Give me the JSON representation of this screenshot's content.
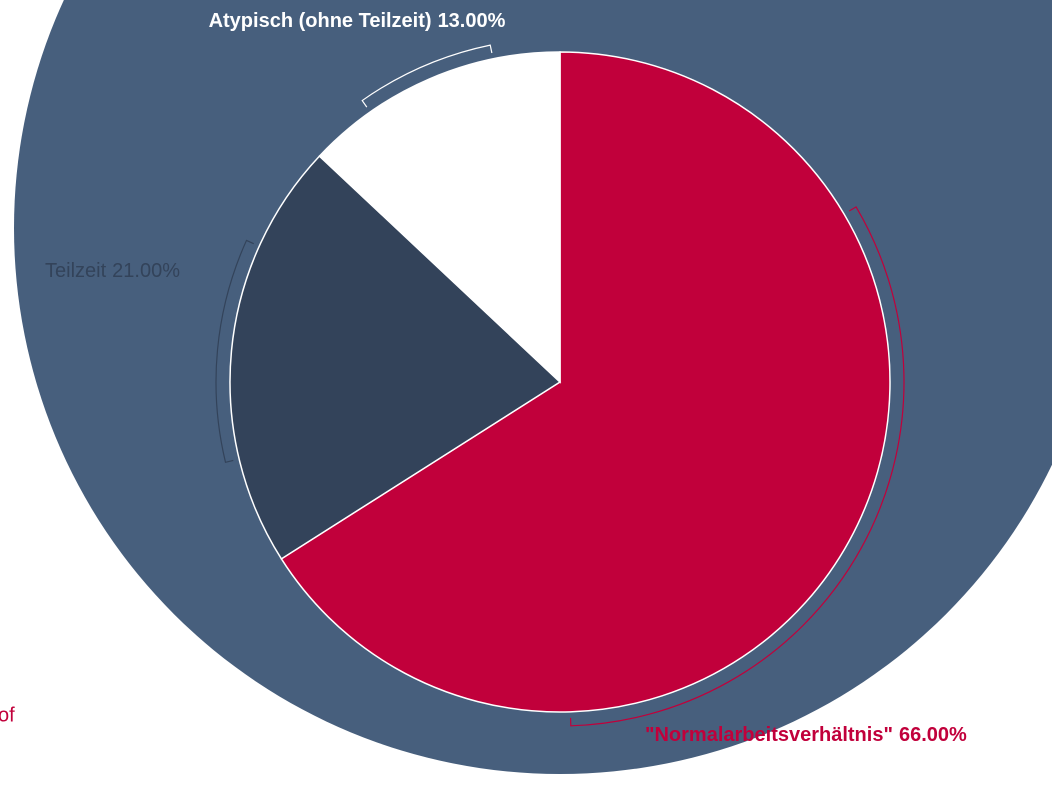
{
  "chart_data": {
    "type": "pie",
    "categories": [
      "\"Normalarbeitsverhältnis\"",
      "Teilzeit",
      "Atypisch (ohne Teilzeit)"
    ],
    "values": [
      66,
      21,
      13
    ],
    "value_labels": [
      "66.00%",
      "21.00%",
      "13.00%"
    ],
    "colors": [
      "#c1003b",
      "#33435a",
      "#ffffff"
    ],
    "label_colors": [
      "#c1003b",
      "#33435a",
      "#ffffff"
    ],
    "background_color": "#475f7d",
    "side_text": "of"
  }
}
